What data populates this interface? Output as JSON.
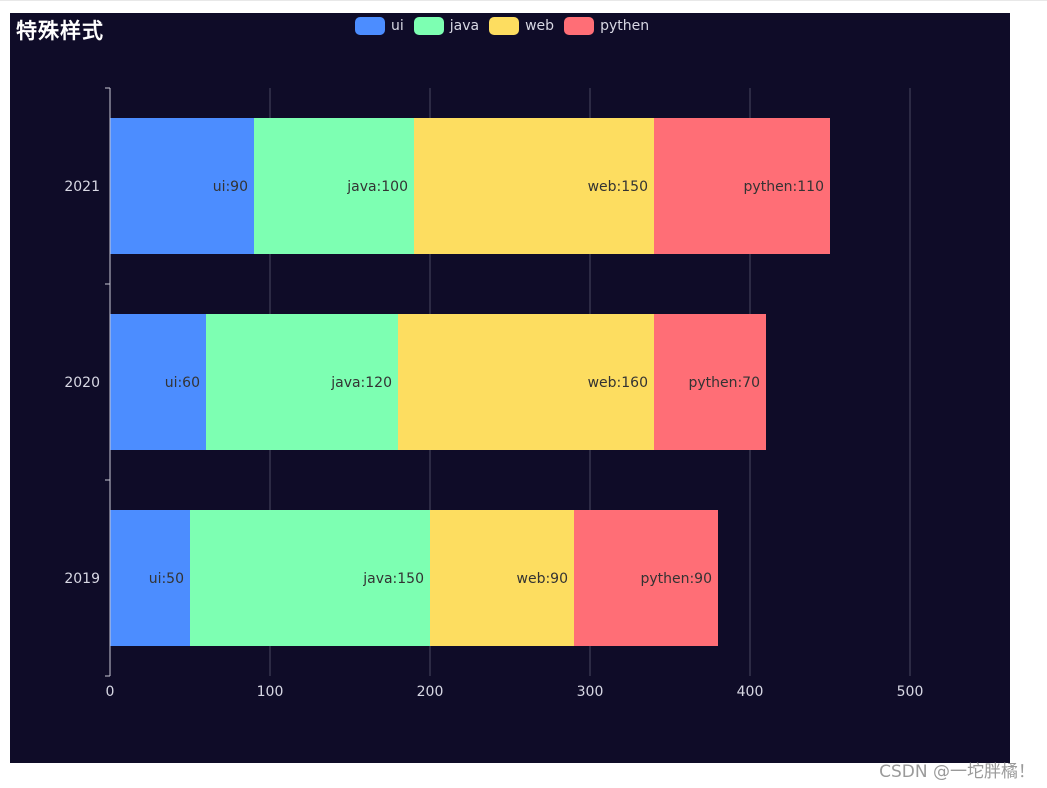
{
  "page": {
    "background": "#0f0c28",
    "watermark": "CSDN @一坨胖橘！"
  },
  "chart_data": {
    "type": "bar",
    "orientation": "horizontal",
    "stacked": true,
    "title": "特殊样式",
    "categories": [
      "2019",
      "2020",
      "2021"
    ],
    "series": [
      {
        "name": "ui",
        "values": [
          50,
          60,
          90
        ],
        "color": "#4c8dff"
      },
      {
        "name": "java",
        "values": [
          150,
          120,
          100
        ],
        "color": "#7dffb2"
      },
      {
        "name": "web",
        "values": [
          90,
          160,
          150
        ],
        "color": "#fddd60"
      },
      {
        "name": "pythen",
        "values": [
          90,
          70,
          110
        ],
        "color": "#ff6e76"
      }
    ],
    "xlim": [
      0,
      560
    ],
    "x_ticks": [
      0,
      100,
      200,
      300,
      400,
      500
    ],
    "grid": true,
    "legend_position": "top-center",
    "data_labels": "inside-right, name:value"
  }
}
